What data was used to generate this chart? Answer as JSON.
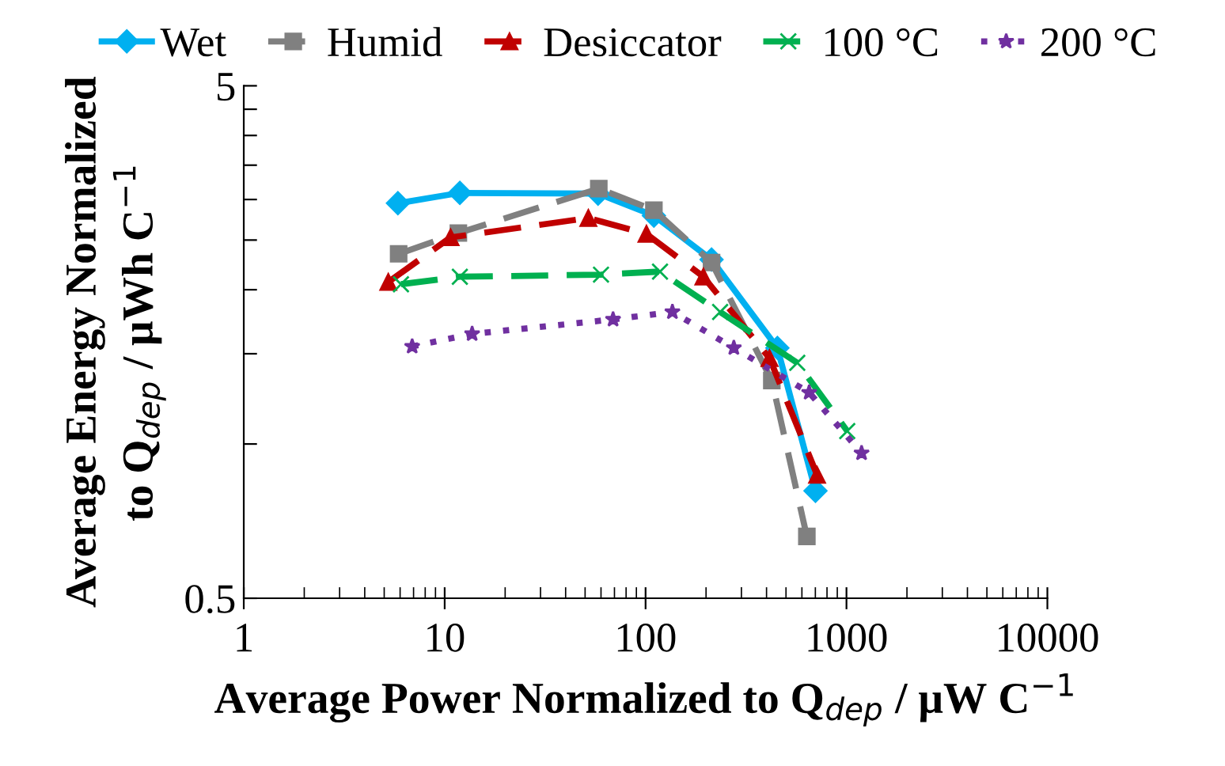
{
  "chart_data": {
    "type": "line",
    "xlabel": "Average Power Normalized to Q$_{dep}$ / μW C$^{−1}$",
    "ylabel": "Average Energy Normalized\nto Q$_{dep}$ / μWh C$^{−1}$",
    "log": "xy",
    "grid": false,
    "legend": "top",
    "xlim": [
      1,
      10000
    ],
    "xticks": [
      1,
      10,
      100,
      1000,
      10000
    ],
    "ylim": [
      0.5,
      5
    ],
    "yticks": [
      0.5,
      {
        "value": 1,
        "label": null
      },
      {
        "value": 1.5,
        "label": null
      },
      {
        "value": 2,
        "label": null
      },
      {
        "value": 2.5,
        "label": null
      },
      {
        "value": 3,
        "label": null
      },
      {
        "value": 3.5,
        "label": null
      },
      {
        "value": 4,
        "label": null
      },
      {
        "value": 4.5,
        "label": null
      },
      5
    ],
    "series": [
      {
        "name": "Wet",
        "color": "#00b0f0",
        "marker": "diamond",
        "line_style": "solid",
        "x": [
          5.85,
          11.9,
          58,
          110,
          213,
          453,
          701
        ],
        "values": [
          2.95,
          3.09,
          3.08,
          2.79,
          2.29,
          1.54,
          0.81
        ]
      },
      {
        "name": "Humid",
        "color": "#808080",
        "marker": "square",
        "line_style": "dashed",
        "x": [
          5.9,
          11.7,
          58.5,
          110,
          213,
          425,
          635
        ],
        "values": [
          2.35,
          2.58,
          3.15,
          2.86,
          2.26,
          1.33,
          0.66
        ]
      },
      {
        "name": "Desiccator",
        "color": "#c00000",
        "marker": "triangle",
        "line_style": "dashed",
        "x": [
          5.24,
          10.7,
          51.9,
          101,
          194,
          414,
          714
        ],
        "values": [
          2.07,
          2.53,
          2.76,
          2.57,
          2.12,
          1.47,
          0.87
        ]
      },
      {
        "name": "100 °C",
        "color": "#00b050",
        "marker": "cross",
        "line_style": "dashed",
        "x": [
          6.06,
          11.9,
          60,
          118,
          235,
          569,
          1009
        ],
        "values": [
          2.05,
          2.12,
          2.14,
          2.17,
          1.81,
          1.44,
          1.06
        ]
      },
      {
        "name": "200 °C",
        "color": "#7030a0",
        "marker": "star",
        "line_style": "dotted",
        "x": [
          6.89,
          13.7,
          68.9,
          136,
          275,
          652,
          1189
        ],
        "values": [
          1.55,
          1.64,
          1.75,
          1.81,
          1.54,
          1.26,
          0.96
        ]
      }
    ]
  }
}
